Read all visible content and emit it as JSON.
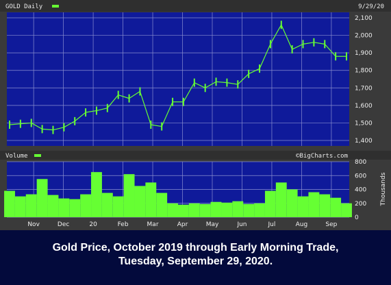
{
  "caption": {
    "line1": "Gold Price, October 2019 through Early Morning Trade,",
    "line2": "Tuesday, September 29, 2020."
  },
  "chart_data": [
    {
      "type": "bar",
      "title": "GOLD Daily",
      "date_label": "9/29/20",
      "ylim": [
        1400,
        2100
      ],
      "y_ticks": [
        1400,
        1500,
        1600,
        1700,
        1800,
        1900,
        2000,
        2100
      ],
      "y_tick_labels": [
        "1,400",
        "1,500",
        "1,600",
        "1,700",
        "1,800",
        "1,900",
        "2,000",
        "2,100"
      ],
      "grid": true,
      "colors": {
        "bars": "#66ff33",
        "background": "#0f1a9a",
        "grid": "#8a8fd0"
      },
      "x": [
        "Oct 1",
        "Oct 15",
        "Nov 1",
        "Nov 15",
        "Dec 1",
        "Dec 15",
        "Jan 1",
        "Jan 15",
        "Feb 1",
        "Feb 15",
        "Feb 24",
        "Mar 1",
        "Mar 9",
        "Mar 16",
        "Mar 20",
        "Mar 24",
        "Apr 1",
        "Apr 15",
        "May 1",
        "May 15",
        "Jun 1",
        "Jun 15",
        "Jul 1",
        "Jul 15",
        "Aug 1",
        "Aug 6",
        "Aug 11",
        "Aug 15",
        "Sep 1",
        "Sep 15",
        "Sep 22",
        "Sep 29"
      ],
      "y": [
        1490,
        1495,
        1500,
        1465,
        1460,
        1475,
        1510,
        1560,
        1570,
        1585,
        1660,
        1640,
        1680,
        1490,
        1480,
        1620,
        1620,
        1730,
        1700,
        1735,
        1730,
        1720,
        1780,
        1810,
        1950,
        2060,
        1920,
        1950,
        1960,
        1950,
        1880,
        1880
      ]
    },
    {
      "type": "bar",
      "title": "Volume",
      "watermark": "©BigCharts.com",
      "ylabel": "Thousands",
      "ylim": [
        0,
        800
      ],
      "y_ticks": [
        0,
        200,
        400,
        600,
        800
      ],
      "y_tick_labels": [
        "0",
        "200",
        "400",
        "600",
        "800"
      ],
      "x_tick_labels": [
        "Nov",
        "Dec",
        "20",
        "Feb",
        "Mar",
        "Apr",
        "May",
        "Jun",
        "Jul",
        "Aug",
        "Sep"
      ],
      "colors": {
        "bars": "#66ff33",
        "background": "#0f1a9a"
      },
      "x": [
        "Oct 1",
        "Oct 15",
        "Nov 1",
        "Nov 15",
        "Dec 1",
        "Dec 15",
        "Jan 1",
        "Jan 15",
        "Feb 1",
        "Feb 15",
        "Feb 24",
        "Mar 1",
        "Mar 9",
        "Mar 16",
        "Mar 20",
        "Mar 24",
        "Apr 1",
        "Apr 15",
        "May 1",
        "May 15",
        "Jun 1",
        "Jun 15",
        "Jul 1",
        "Jul 15",
        "Aug 1",
        "Aug 6",
        "Aug 11",
        "Aug 15",
        "Sep 1",
        "Sep 15",
        "Sep 22",
        "Sep 29"
      ],
      "values": [
        380,
        300,
        330,
        550,
        320,
        270,
        260,
        330,
        650,
        350,
        300,
        620,
        450,
        500,
        350,
        200,
        180,
        200,
        190,
        220,
        210,
        230,
        190,
        200,
        380,
        500,
        400,
        300,
        360,
        330,
        280,
        200
      ]
    }
  ]
}
